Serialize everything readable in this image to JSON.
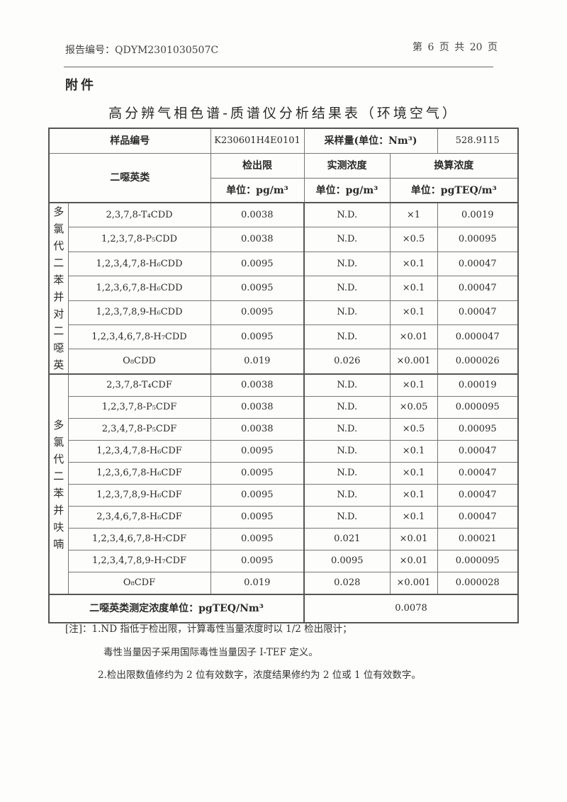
{
  "header": {
    "report_no": "报告编号：QDYM2301030507C",
    "page_no": "第 6 页 共 20 页"
  },
  "attachment_label": "附件",
  "title": "高分辨气相色谱-质谱仪分析结果表（环境空气）",
  "table": {
    "sample_no_label": "样品编号",
    "sample_no": "K230601H4E0101",
    "volume_label": "采样量(单位：Nm³)",
    "volume": "528.9115",
    "category_label": "二噁英类",
    "lod_label": "检出限",
    "measured_label": "实测浓度",
    "converted_label": "换算浓度",
    "lod_unit": "单位：pg/m³",
    "measured_unit": "单位：pg/m³",
    "converted_unit": "单位：pgTEQ/m³",
    "groups": [
      {
        "name": "多氯代二苯并对二噁英",
        "rows": [
          {
            "compound": "2,3,7,8-T₄CDD",
            "lod": "0.0038",
            "measured": "N.D.",
            "factor": "×1",
            "teq": "0.0019"
          },
          {
            "compound": "1,2,3,7,8-P₅CDD",
            "lod": "0.0038",
            "measured": "N.D.",
            "factor": "×0.5",
            "teq": "0.00095"
          },
          {
            "compound": "1,2,3,4,7,8-H₆CDD",
            "lod": "0.0095",
            "measured": "N.D.",
            "factor": "×0.1",
            "teq": "0.00047"
          },
          {
            "compound": "1,2,3,6,7,8-H₆CDD",
            "lod": "0.0095",
            "measured": "N.D.",
            "factor": "×0.1",
            "teq": "0.00047"
          },
          {
            "compound": "1,2,3,7,8,9-H₆CDD",
            "lod": "0.0095",
            "measured": "N.D.",
            "factor": "×0.1",
            "teq": "0.00047"
          },
          {
            "compound": "1,2,3,4,6,7,8-H₇CDD",
            "lod": "0.0095",
            "measured": "N.D.",
            "factor": "×0.01",
            "teq": "0.000047"
          },
          {
            "compound": "O₈CDD",
            "lod": "0.019",
            "measured": "0.026",
            "factor": "×0.001",
            "teq": "0.000026"
          }
        ]
      },
      {
        "name": "多氯代二苯并呋喃",
        "rows": [
          {
            "compound": "2,3,7,8-T₄CDF",
            "lod": "0.0038",
            "measured": "N.D.",
            "factor": "×0.1",
            "teq": "0.00019"
          },
          {
            "compound": "1,2,3,7,8-P₅CDF",
            "lod": "0.0038",
            "measured": "N.D.",
            "factor": "×0.05",
            "teq": "0.000095"
          },
          {
            "compound": "2,3,4,7,8-P₅CDF",
            "lod": "0.0038",
            "measured": "N.D.",
            "factor": "×0.5",
            "teq": "0.00095"
          },
          {
            "compound": "1,2,3,4,7,8-H₆CDF",
            "lod": "0.0095",
            "measured": "N.D.",
            "factor": "×0.1",
            "teq": "0.00047"
          },
          {
            "compound": "1,2,3,6,7,8-H₆CDF",
            "lod": "0.0095",
            "measured": "N.D.",
            "factor": "×0.1",
            "teq": "0.00047"
          },
          {
            "compound": "1,2,3,7,8,9-H₆CDF",
            "lod": "0.0095",
            "measured": "N.D.",
            "factor": "×0.1",
            "teq": "0.00047"
          },
          {
            "compound": "2,3,4,6,7,8-H₆CDF",
            "lod": "0.0095",
            "measured": "N.D.",
            "factor": "×0.1",
            "teq": "0.00047"
          },
          {
            "compound": "1,2,3,4,6,7,8-H₇CDF",
            "lod": "0.0095",
            "measured": "0.021",
            "factor": "×0.01",
            "teq": "0.00021"
          },
          {
            "compound": "1,2,3,4,7,8,9-H₇CDF",
            "lod": "0.0095",
            "measured": "0.0095",
            "factor": "×0.01",
            "teq": "0.000095"
          },
          {
            "compound": "O₈CDF",
            "lod": "0.019",
            "measured": "0.028",
            "factor": "×0.001",
            "teq": "0.000028"
          }
        ]
      }
    ],
    "total_label": "二噁英类测定浓度单位：pgTEQ/Nm³",
    "total_value": "0.0078"
  },
  "notes": [
    "[注]：1.ND 指低于检出限，计算毒性当量浓度时以 1/2 检出限计；",
    "毒性当量因子采用国际毒性当量因子 I-TEF 定义。",
    "2.检出限数值修约为 2 位有效数字，浓度结果修约为 2 位或 1 位有效数字。"
  ]
}
